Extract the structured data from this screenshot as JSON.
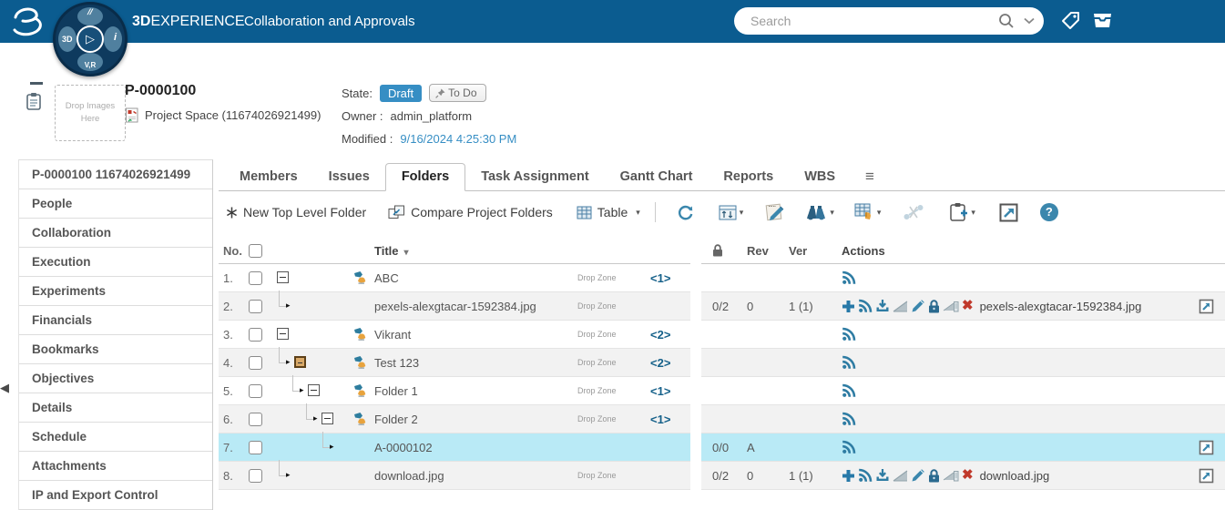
{
  "topbar": {
    "brand_bold": "3D",
    "brand_rest": "EXPERIENCE",
    "app_title": "Collaboration and Approvals",
    "search_placeholder": "Search",
    "logo": {
      "left": "3D",
      "right": "i",
      "bottom": "V,R",
      "top": "//",
      "play": "▷"
    }
  },
  "header": {
    "title": "P-0000100",
    "type_label": "Project Space (11674026921499)",
    "drop_zone_text": "Drop Images Here",
    "state_label": "State:",
    "state_value": "Draft",
    "todo_label": "To Do",
    "owner_label": "Owner :",
    "owner_value": "admin_platform",
    "modified_label": "Modified :",
    "modified_value": "9/16/2024 4:25:30 PM"
  },
  "sidebar": {
    "items": [
      "P-0000100 11674026921499",
      "People",
      "Collaboration",
      "Execution",
      "Experiments",
      "Financials",
      "Bookmarks",
      "Objectives",
      "Details",
      "Schedule",
      "Attachments",
      "IP and Export Control"
    ]
  },
  "tabs": {
    "items": [
      "Members",
      "Issues",
      "Folders",
      "Task Assignment",
      "Gantt Chart",
      "Reports",
      "WBS"
    ],
    "active": "Folders",
    "more_icon": "≡"
  },
  "toolbar": {
    "new_top_level_folder": "New Top Level Folder",
    "compare_project_folders": "Compare Project Folders",
    "table_label": "Table",
    "caret": "▾"
  },
  "table": {
    "headers": {
      "no": "No.",
      "title": "Title",
      "rev": "Rev",
      "ver": "Ver",
      "actions": "Actions"
    },
    "sort_caret": "▾",
    "drop_zone_label": "Drop Zone",
    "colors": {
      "selected_row": "#b9eaf6",
      "alt_row": "#f2f2f2",
      "accent": "#368ec4",
      "icon_blue": "#2e7ca3"
    },
    "rows": [
      {
        "no": "1.",
        "indent": 0,
        "arrow": false,
        "box": "minus",
        "folder_icon": true,
        "title": "ABC",
        "drop_zone": true,
        "count": "<1>",
        "lock": "",
        "rev": "",
        "ver": "",
        "action_icons": [
          "rss"
        ],
        "filename": "",
        "export_icon": false,
        "selected": false
      },
      {
        "no": "2.",
        "indent": 1,
        "arrow": true,
        "box": "none",
        "folder_icon": false,
        "title": "pexels-alexgtacar-1592384.jpg",
        "drop_zone": true,
        "count": "",
        "lock": "0/2",
        "rev": "0",
        "ver": "1 (1)",
        "action_icons": [
          "add",
          "rss",
          "download",
          "replace-disabled",
          "edit",
          "lock",
          "content-disabled",
          "delete"
        ],
        "filename": "pexels-alexgtacar-1592384.jpg",
        "export_icon": true,
        "selected": false
      },
      {
        "no": "3.",
        "indent": 0,
        "arrow": false,
        "box": "minus",
        "folder_icon": true,
        "title": "Vikrant",
        "drop_zone": true,
        "count": "<2>",
        "lock": "",
        "rev": "",
        "ver": "",
        "action_icons": [
          "rss"
        ],
        "filename": "",
        "export_icon": false,
        "selected": false
      },
      {
        "no": "4.",
        "indent": 1,
        "arrow": true,
        "box": "minus-hl",
        "folder_icon": true,
        "title": "Test 123",
        "drop_zone": true,
        "count": "<2>",
        "lock": "",
        "rev": "",
        "ver": "",
        "action_icons": [
          "rss"
        ],
        "filename": "",
        "export_icon": false,
        "selected": false
      },
      {
        "no": "5.",
        "indent": 2,
        "arrow": true,
        "box": "minus",
        "folder_icon": true,
        "title": "Folder 1",
        "drop_zone": true,
        "count": "<1>",
        "lock": "",
        "rev": "",
        "ver": "",
        "action_icons": [
          "rss"
        ],
        "filename": "",
        "export_icon": false,
        "selected": false
      },
      {
        "no": "6.",
        "indent": 3,
        "arrow": true,
        "box": "minus",
        "folder_icon": true,
        "title": "Folder 2",
        "drop_zone": true,
        "count": "<1>",
        "lock": "",
        "rev": "",
        "ver": "",
        "action_icons": [
          "rss"
        ],
        "filename": "",
        "export_icon": false,
        "selected": false
      },
      {
        "no": "7.",
        "indent": 4,
        "arrow": true,
        "box": "none",
        "folder_icon": false,
        "title": "A-0000102",
        "drop_zone": false,
        "count": "",
        "lock": "0/0",
        "rev": "A",
        "ver": "",
        "action_icons": [
          "rss"
        ],
        "filename": "",
        "export_icon": true,
        "selected": true
      },
      {
        "no": "8.",
        "indent": 1,
        "arrow": true,
        "box": "none",
        "folder_icon": false,
        "title": "download.jpg",
        "drop_zone": true,
        "count": "",
        "lock": "0/2",
        "rev": "0",
        "ver": "1 (1)",
        "action_icons": [
          "add",
          "rss",
          "download",
          "replace-disabled",
          "edit",
          "lock",
          "content-disabled",
          "delete"
        ],
        "filename": "download.jpg",
        "export_icon": true,
        "selected": false
      }
    ]
  },
  "misc": {
    "collapse_arrow": "◀"
  }
}
